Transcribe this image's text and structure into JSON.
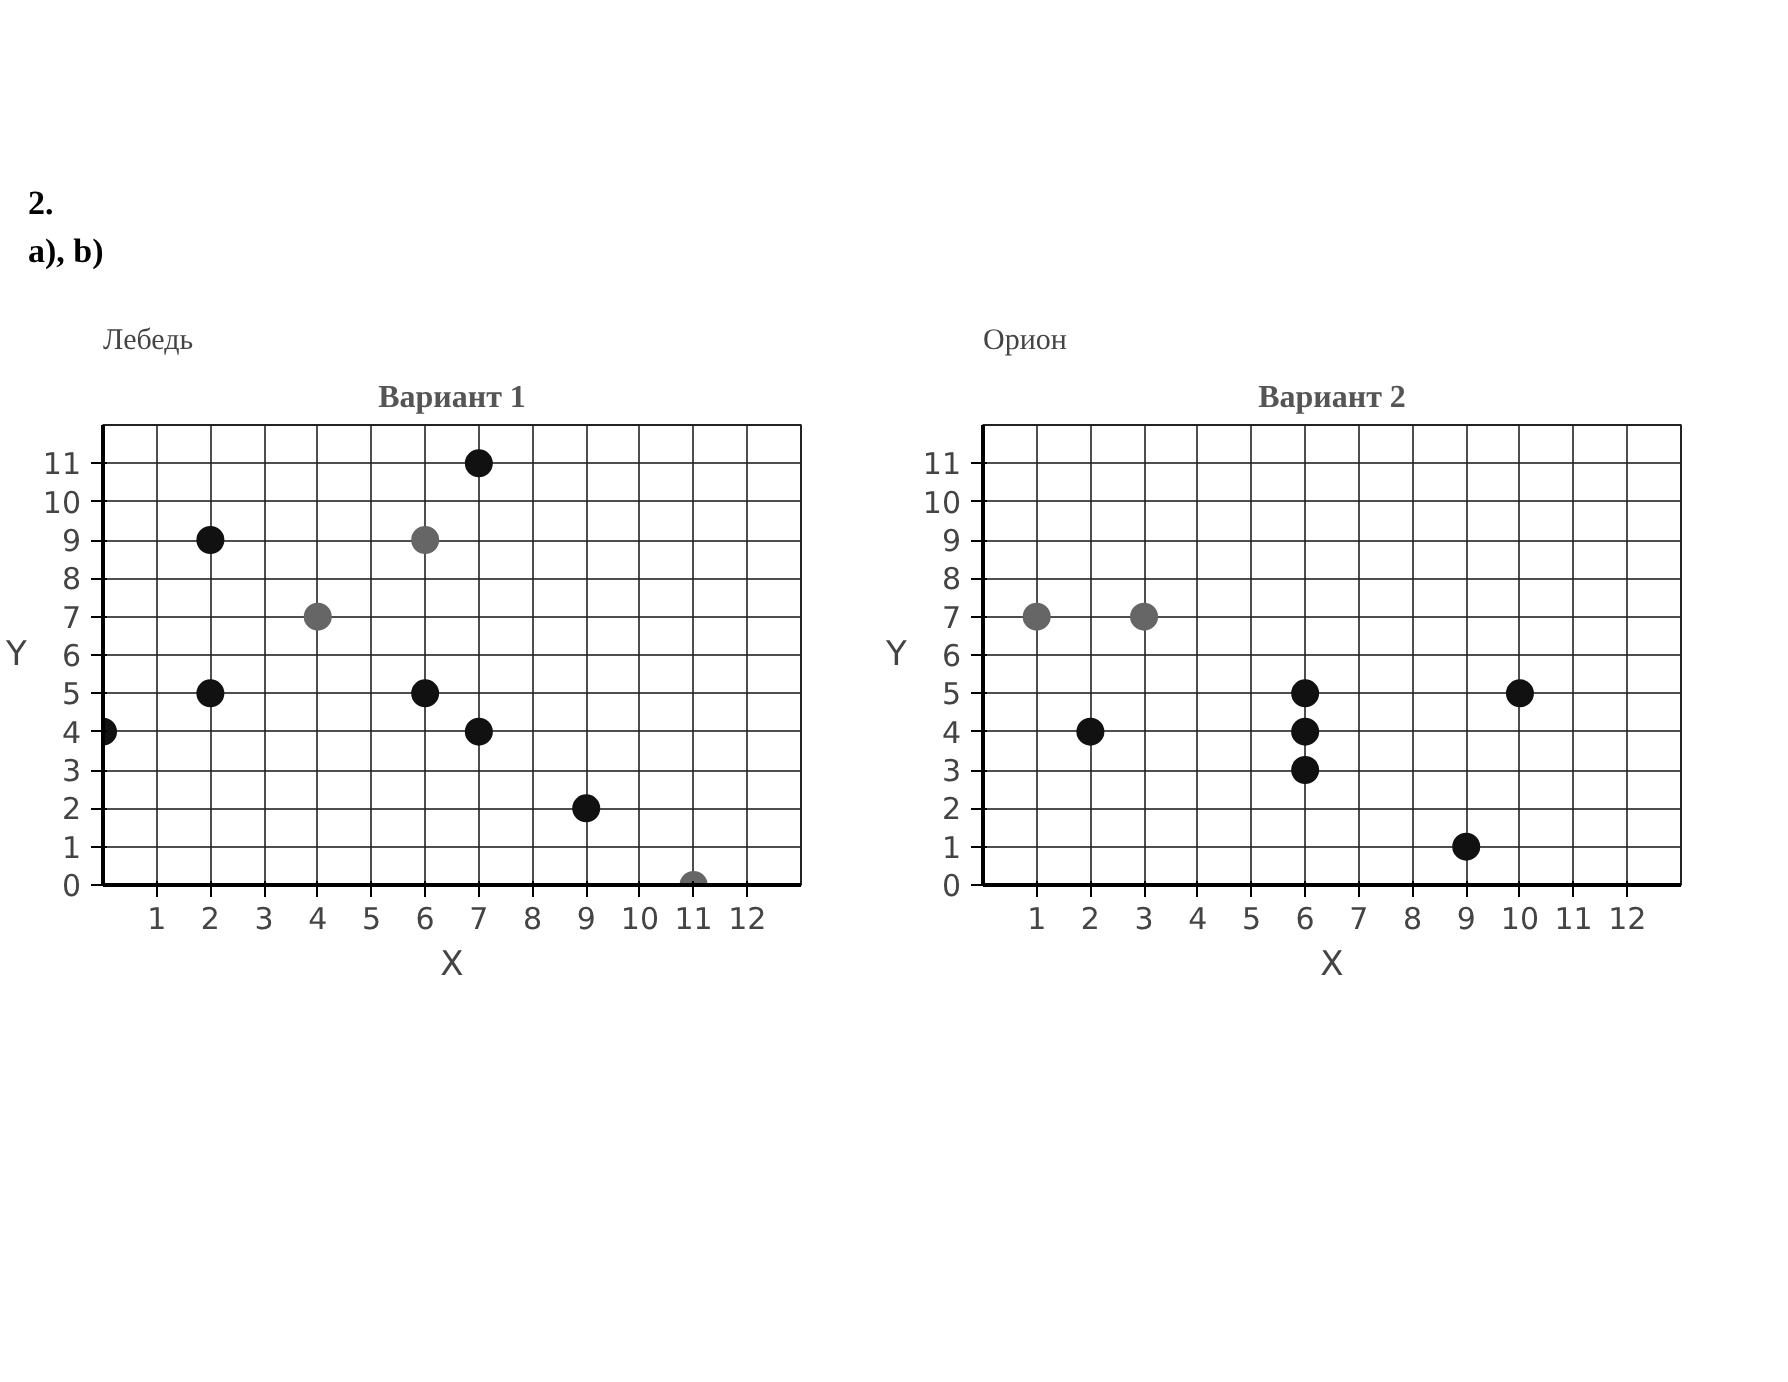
{
  "chart_data": [
    {
      "type": "scatter",
      "title": "Вариант 1",
      "subtitle": "Лебедь",
      "annotations": [
        "2.",
        "a), b)"
      ],
      "xlabel": "X",
      "ylabel": "Y",
      "x": [
        0,
        2,
        2,
        4,
        6,
        6,
        7,
        7,
        9,
        11
      ],
      "values": [
        4,
        9,
        5,
        7,
        9,
        5,
        11,
        4,
        2,
        0
      ],
      "colors": [
        "#111111",
        "#111111",
        "#111111",
        "#666666",
        "#666666",
        "#111111",
        "#111111",
        "#111111",
        "#111111",
        "#666666"
      ],
      "marker": "circle",
      "xlim": [
        0,
        13
      ],
      "ylim": [
        0,
        12
      ],
      "xticks": [
        1,
        2,
        3,
        4,
        5,
        6,
        7,
        8,
        9,
        10,
        11,
        12
      ],
      "yticks": [
        0,
        1,
        2,
        3,
        4,
        5,
        6,
        7,
        8,
        9,
        10,
        11
      ],
      "grid": true,
      "legend": false
    },
    {
      "type": "scatter",
      "title": "Вариант 2",
      "subtitle": "Орион",
      "xlabel": "X",
      "ylabel": "Y",
      "x": [
        1,
        3,
        2,
        6,
        6,
        6,
        9,
        10
      ],
      "values": [
        7,
        7,
        4,
        5,
        4,
        3,
        1,
        5
      ],
      "colors": [
        "#666666",
        "#666666",
        "#111111",
        "#111111",
        "#111111",
        "#111111",
        "#111111",
        "#111111"
      ],
      "marker": "circle",
      "xlim": [
        0,
        13
      ],
      "ylim": [
        0,
        12
      ],
      "xticks": [
        1,
        2,
        3,
        4,
        5,
        6,
        7,
        8,
        9,
        10,
        11,
        12
      ],
      "yticks": [
        0,
        1,
        2,
        3,
        4,
        5,
        6,
        7,
        8,
        9,
        10,
        11
      ],
      "grid": true,
      "legend": false
    }
  ]
}
